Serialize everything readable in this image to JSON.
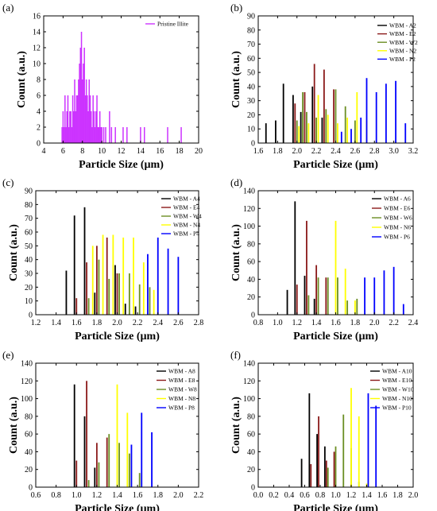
{
  "chart_data": [
    {
      "panel": "(a)",
      "type": "bar",
      "xlabel": "Particle Size (µm)",
      "ylabel": "Count (a.u.)",
      "xlim": [
        4,
        20
      ],
      "ylim": [
        0,
        16
      ],
      "xticks": [
        "4",
        "6",
        "8",
        "10",
        "12",
        "14",
        "16",
        "18",
        "20"
      ],
      "yticks": [
        "0",
        "2",
        "4",
        "6",
        "8",
        "10",
        "12",
        "14",
        "16"
      ],
      "legend_position": "top-right",
      "grid": false,
      "series": [
        {
          "name": "Pristine Illite",
          "color": "#cc33ff",
          "x": [
            5.9,
            6.0,
            6.1,
            6.2,
            6.3,
            6.4,
            6.5,
            6.6,
            6.7,
            6.8,
            6.9,
            7.0,
            7.1,
            7.2,
            7.3,
            7.4,
            7.5,
            7.6,
            7.7,
            7.8,
            7.9,
            8.0,
            8.1,
            8.2,
            8.3,
            8.4,
            8.5,
            8.6,
            8.7,
            8.8,
            8.9,
            9.0,
            9.1,
            9.2,
            9.3,
            9.4,
            9.5,
            9.6,
            9.7,
            9.8,
            9.9,
            10.0,
            10.2,
            10.4,
            10.8,
            11.0,
            11.4,
            12.2,
            12.6,
            14.0,
            14.4,
            16.8,
            18.2
          ],
          "values": [
            2,
            4,
            2,
            6,
            2,
            4,
            6,
            2,
            4,
            4,
            2,
            6,
            4,
            8,
            4,
            6,
            6,
            8,
            10,
            12,
            14,
            8,
            10,
            12,
            6,
            8,
            6,
            4,
            8,
            6,
            4,
            2,
            6,
            4,
            2,
            4,
            6,
            2,
            2,
            4,
            2,
            2,
            2,
            2,
            4,
            2,
            2,
            2,
            2,
            2,
            2,
            2,
            2
          ]
        }
      ]
    },
    {
      "panel": "(b)",
      "type": "bar",
      "xlabel": "Particle Size (µm)",
      "ylabel": "Count (a.u.)",
      "xlim": [
        1.6,
        3.2
      ],
      "ylim": [
        0,
        90
      ],
      "xticks": [
        "1.6",
        "1.8",
        "2.0",
        "2.2",
        "2.4",
        "2.6",
        "2.8",
        "3.0",
        "3.2"
      ],
      "yticks": [
        "0",
        "10",
        "20",
        "30",
        "40",
        "50",
        "60",
        "70",
        "80",
        "90"
      ],
      "legend_position": "top-right",
      "grid": false,
      "series": [
        {
          "name": "WBM - A2",
          "color": "#000000",
          "x": [
            1.68,
            1.78,
            1.86,
            1.96,
            2.04,
            2.16,
            2.26
          ],
          "values": [
            14,
            16,
            42,
            34,
            22,
            40,
            18
          ]
        },
        {
          "name": "WBM - E2",
          "color": "#8b1a1a",
          "x": [
            1.98,
            2.08,
            2.18,
            2.28,
            2.38
          ],
          "values": [
            28,
            36,
            56,
            52,
            38
          ]
        },
        {
          "name": "WBM - W2",
          "color": "#6b8e23",
          "x": [
            2.0,
            2.06,
            2.1,
            2.2,
            2.3,
            2.4,
            2.5,
            2.6
          ],
          "values": [
            16,
            36,
            22,
            18,
            24,
            38,
            26,
            16
          ]
        },
        {
          "name": "WBM - N2",
          "color": "#ffff00",
          "x": [
            2.02,
            2.12,
            2.22,
            2.32,
            2.42,
            2.52,
            2.62,
            2.72
          ],
          "values": [
            12,
            14,
            34,
            20,
            14,
            18,
            36,
            16
          ]
        },
        {
          "name": "WBM - P2",
          "color": "#0000ff",
          "x": [
            2.46,
            2.56,
            2.66,
            2.72,
            2.82,
            2.92,
            3.02,
            3.12
          ],
          "values": [
            8,
            10,
            18,
            46,
            36,
            42,
            44,
            14
          ]
        }
      ]
    },
    {
      "panel": "(c)",
      "type": "bar",
      "xlabel": "Particle Size (µm)",
      "ylabel": "Count (a.u.)",
      "xlim": [
        1.2,
        2.8
      ],
      "ylim": [
        0,
        90
      ],
      "xticks": [
        "1.2",
        "1.4",
        "1.6",
        "1.8",
        "2.0",
        "2.2",
        "2.4",
        "2.6",
        "2.8"
      ],
      "yticks": [
        "0",
        "10",
        "20",
        "30",
        "40",
        "50",
        "60",
        "70",
        "80",
        "90"
      ],
      "legend_position": "top-right",
      "grid": false,
      "series": [
        {
          "name": "WBM - A4",
          "color": "#000000",
          "x": [
            1.5,
            1.58,
            1.68,
            1.78,
            1.98,
            2.08,
            2.18
          ],
          "values": [
            32,
            72,
            78,
            16,
            36,
            8,
            6
          ]
        },
        {
          "name": "WBM - E4",
          "color": "#8b1a1a",
          "x": [
            1.6,
            1.7,
            1.8,
            1.9,
            2.0
          ],
          "values": [
            12,
            38,
            50,
            56,
            30
          ]
        },
        {
          "name": "WBM - W4",
          "color": "#6b8e23",
          "x": [
            1.72,
            1.82,
            1.92,
            2.02,
            2.12,
            2.22,
            2.32
          ],
          "values": [
            12,
            40,
            26,
            30,
            30,
            22,
            20
          ]
        },
        {
          "name": "WBM - N4",
          "color": "#ffff00",
          "x": [
            1.76,
            1.86,
            1.96,
            2.06,
            2.16,
            2.26,
            2.36
          ],
          "values": [
            50,
            58,
            58,
            56,
            56,
            38,
            18
          ]
        },
        {
          "name": "WBM - P4",
          "color": "#0000ff",
          "x": [
            2.3,
            2.4,
            2.5,
            2.6
          ],
          "values": [
            44,
            56,
            48,
            42
          ]
        }
      ]
    },
    {
      "panel": "(d)",
      "type": "bar",
      "xlabel": "Particle Size (µm)",
      "ylabel": "Count (a.u.)",
      "xlim": [
        0.8,
        2.4
      ],
      "ylim": [
        0,
        140
      ],
      "xticks": [
        "0.8",
        "1.0",
        "1.2",
        "1.4",
        "1.6",
        "1.8",
        "2.0",
        "2.2",
        "2.4"
      ],
      "yticks": [
        "0",
        "20",
        "40",
        "60",
        "80",
        "100",
        "120",
        "140"
      ],
      "legend_position": "top-right",
      "grid": false,
      "series": [
        {
          "name": "WBM - A6",
          "color": "#000000",
          "x": [
            1.1,
            1.18,
            1.28,
            1.38
          ],
          "values": [
            28,
            128,
            44,
            18
          ]
        },
        {
          "name": "WBM - E6",
          "color": "#8b1a1a",
          "x": [
            1.2,
            1.3,
            1.4,
            1.5
          ],
          "values": [
            34,
            106,
            56,
            42
          ]
        },
        {
          "name": "WBM - W6",
          "color": "#6b8e23",
          "x": [
            1.32,
            1.42,
            1.52,
            1.62,
            1.72,
            1.82
          ],
          "values": [
            22,
            42,
            42,
            42,
            16,
            18
          ]
        },
        {
          "name": "WBM - N6",
          "color": "#ffff00",
          "x": [
            1.6,
            1.7,
            1.8
          ],
          "values": [
            106,
            52,
            16
          ]
        },
        {
          "name": "WBM - P6",
          "color": "#0000ff",
          "x": [
            1.9,
            2.0,
            2.1,
            2.2,
            2.3
          ],
          "values": [
            42,
            42,
            50,
            54,
            12
          ]
        }
      ]
    },
    {
      "panel": "(e)",
      "type": "bar",
      "xlabel": "Particle Size (µm)",
      "ylabel": "Count (a.u.)",
      "xlim": [
        0.6,
        2.2
      ],
      "ylim": [
        0,
        140
      ],
      "xticks": [
        "0.6",
        "0.8",
        "1.0",
        "1.2",
        "1.4",
        "1.6",
        "1.8",
        "2.0",
        "2.2"
      ],
      "yticks": [
        "0",
        "20",
        "40",
        "60",
        "80",
        "100",
        "120",
        "140"
      ],
      "legend_position": "top-right",
      "grid": false,
      "series": [
        {
          "name": "WBM - A8",
          "color": "#000000",
          "x": [
            0.98,
            1.08,
            1.18
          ],
          "values": [
            116,
            80,
            22
          ]
        },
        {
          "name": "WBM - E8",
          "color": "#8b1a1a",
          "x": [
            1.0,
            1.1,
            1.2,
            1.3
          ],
          "values": [
            30,
            120,
            50,
            56
          ]
        },
        {
          "name": "WBM - W8",
          "color": "#6b8e23",
          "x": [
            1.12,
            1.22,
            1.32,
            1.42,
            1.52,
            1.62
          ],
          "values": [
            8,
            28,
            60,
            50,
            38,
            16
          ]
        },
        {
          "name": "WBM - N8",
          "color": "#ffff00",
          "x": [
            1.4,
            1.5
          ],
          "values": [
            116,
            84
          ]
        },
        {
          "name": "WBM - P8",
          "color": "#0000ff",
          "x": [
            1.54,
            1.64,
            1.74
          ],
          "values": [
            48,
            84,
            62
          ]
        }
      ]
    },
    {
      "panel": "(f)",
      "type": "bar",
      "xlabel": "Particle Size (µm)",
      "ylabel": "Count (a.u.)",
      "xlim": [
        0.0,
        2.0
      ],
      "ylim": [
        0,
        140
      ],
      "xticks": [
        "0.0",
        "0.2",
        "0.4",
        "0.6",
        "0.8",
        "1.0",
        "1.2",
        "1.4",
        "1.6",
        "1.8",
        "2.0"
      ],
      "yticks": [
        "0",
        "20",
        "40",
        "60",
        "80",
        "100",
        "120",
        "140"
      ],
      "legend_position": "top-right",
      "grid": false,
      "series": [
        {
          "name": "WBM - A10",
          "color": "#000000",
          "x": [
            0.56,
            0.66,
            0.76,
            0.86
          ],
          "values": [
            32,
            106,
            60,
            46
          ]
        },
        {
          "name": "WBM - E10",
          "color": "#8b1a1a",
          "x": [
            0.68,
            0.78,
            0.88,
            0.98
          ],
          "values": [
            26,
            80,
            30,
            40
          ]
        },
        {
          "name": "WBM - W10",
          "color": "#6b8e23",
          "x": [
            0.9,
            1.0,
            1.1,
            1.2,
            1.3
          ],
          "values": [
            22,
            46,
            82,
            44,
            6
          ]
        },
        {
          "name": "WBM - N10",
          "color": "#ffff00",
          "x": [
            1.2,
            1.3,
            1.4
          ],
          "values": [
            112,
            80,
            4
          ]
        },
        {
          "name": "WBM - P10",
          "color": "#0000ff",
          "x": [
            1.42,
            1.52
          ],
          "values": [
            106,
            92
          ]
        }
      ]
    }
  ]
}
